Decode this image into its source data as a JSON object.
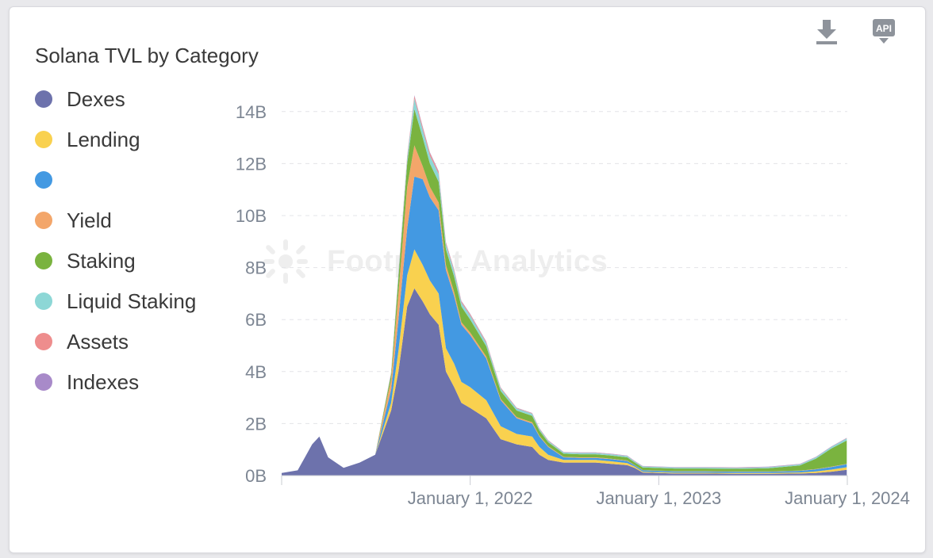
{
  "title": "Solana TVL by Category",
  "watermark": "Footprint Analytics",
  "legend": [
    {
      "label": "Dexes",
      "color": "#6d72ac"
    },
    {
      "label": "Lending",
      "color": "#f9d14f"
    },
    {
      "label": "",
      "color": "#4399e2"
    },
    {
      "label": "Yield",
      "color": "#f3a66a"
    },
    {
      "label": "Staking",
      "color": "#7ab33f"
    },
    {
      "label": "Liquid Staking",
      "color": "#8dd7d6"
    },
    {
      "label": "Assets",
      "color": "#ee8d8d"
    },
    {
      "label": "Indexes",
      "color": "#a88ac9"
    }
  ],
  "toolbar": {
    "download_icon": "download-icon",
    "api_label": "API"
  },
  "chart_data": {
    "type": "area",
    "stacked": true,
    "title": "Solana TVL by Category",
    "xlabel": "",
    "ylabel": "",
    "ylim": [
      0,
      15000000000
    ],
    "yticks": [
      "0B",
      "2B",
      "4B",
      "6B",
      "8B",
      "10B",
      "12B",
      "14B"
    ],
    "ytick_values": [
      0,
      2,
      4,
      6,
      8,
      10,
      12,
      14
    ],
    "xticks": [
      "January 1, 2022",
      "January 1, 2023",
      "January 1, 2024"
    ],
    "xtick_positions": [
      "2022-01-01",
      "2023-01-01",
      "2024-01-01"
    ],
    "x_range": [
      "2021-01-01",
      "2024-01-01"
    ],
    "x": [
      "2021-01-01",
      "2021-02-01",
      "2021-03-01",
      "2021-03-15",
      "2021-04-01",
      "2021-05-01",
      "2021-06-01",
      "2021-07-01",
      "2021-08-01",
      "2021-08-15",
      "2021-09-01",
      "2021-09-15",
      "2021-10-01",
      "2021-10-15",
      "2021-11-01",
      "2021-11-15",
      "2021-12-01",
      "2021-12-15",
      "2022-01-01",
      "2022-02-01",
      "2022-03-01",
      "2022-04-01",
      "2022-05-01",
      "2022-05-15",
      "2022-06-01",
      "2022-07-01",
      "2022-08-01",
      "2022-09-01",
      "2022-10-01",
      "2022-11-01",
      "2022-11-15",
      "2022-12-01",
      "2023-02-01",
      "2023-04-01",
      "2023-06-01",
      "2023-08-01",
      "2023-10-01",
      "2023-11-01",
      "2023-12-01",
      "2023-12-31"
    ],
    "series": [
      {
        "name": "Dexes",
        "values": [
          0.1,
          0.2,
          1.2,
          1.5,
          0.7,
          0.3,
          0.5,
          0.8,
          2.5,
          4.0,
          6.5,
          7.2,
          6.7,
          6.2,
          5.8,
          4.0,
          3.4,
          2.8,
          2.6,
          2.2,
          1.4,
          1.2,
          1.1,
          0.8,
          0.6,
          0.5,
          0.5,
          0.5,
          0.45,
          0.4,
          0.3,
          0.12,
          0.08,
          0.08,
          0.07,
          0.07,
          0.08,
          0.1,
          0.15,
          0.22
        ]
      },
      {
        "name": "Lending",
        "values": [
          0.0,
          0.0,
          0.0,
          0.0,
          0.0,
          0.0,
          0.0,
          0.0,
          0.3,
          0.8,
          1.2,
          1.5,
          1.4,
          1.3,
          1.2,
          0.9,
          0.9,
          0.8,
          0.8,
          0.7,
          0.5,
          0.4,
          0.4,
          0.3,
          0.2,
          0.1,
          0.1,
          0.1,
          0.1,
          0.08,
          0.05,
          0.03,
          0.03,
          0.03,
          0.03,
          0.03,
          0.04,
          0.06,
          0.08,
          0.1
        ]
      },
      {
        "name": "",
        "values": [
          0.0,
          0.0,
          0.0,
          0.0,
          0.0,
          0.0,
          0.0,
          0.0,
          0.5,
          1.2,
          1.8,
          2.8,
          3.3,
          3.2,
          3.2,
          3.0,
          2.6,
          2.2,
          2.0,
          1.6,
          1.0,
          0.6,
          0.5,
          0.4,
          0.3,
          0.1,
          0.08,
          0.08,
          0.08,
          0.08,
          0.05,
          0.05,
          0.05,
          0.05,
          0.05,
          0.05,
          0.06,
          0.08,
          0.1,
          0.12
        ]
      },
      {
        "name": "Yield",
        "values": [
          0.0,
          0.0,
          0.0,
          0.0,
          0.0,
          0.0,
          0.0,
          0.0,
          0.4,
          1.0,
          1.6,
          1.2,
          0.5,
          0.4,
          0.3,
          0.2,
          0.15,
          0.1,
          0.1,
          0.08,
          0.05,
          0.05,
          0.05,
          0.03,
          0.03,
          0.02,
          0.02,
          0.02,
          0.02,
          0.02,
          0.01,
          0.01,
          0.01,
          0.01,
          0.01,
          0.01,
          0.01,
          0.01,
          0.01,
          0.01
        ]
      },
      {
        "name": "Staking",
        "values": [
          0.0,
          0.0,
          0.0,
          0.0,
          0.0,
          0.0,
          0.0,
          0.0,
          0.2,
          0.6,
          0.9,
          1.4,
          1.1,
          0.9,
          0.8,
          0.6,
          0.6,
          0.6,
          0.5,
          0.4,
          0.3,
          0.25,
          0.25,
          0.2,
          0.15,
          0.12,
          0.12,
          0.12,
          0.12,
          0.12,
          0.1,
          0.1,
          0.1,
          0.1,
          0.1,
          0.12,
          0.2,
          0.4,
          0.7,
          0.9
        ]
      },
      {
        "name": "Liquid Staking",
        "values": [
          0.0,
          0.0,
          0.0,
          0.0,
          0.0,
          0.0,
          0.0,
          0.0,
          0.05,
          0.15,
          0.2,
          0.4,
          0.3,
          0.3,
          0.3,
          0.2,
          0.2,
          0.15,
          0.15,
          0.12,
          0.1,
          0.08,
          0.08,
          0.06,
          0.05,
          0.05,
          0.05,
          0.05,
          0.05,
          0.05,
          0.04,
          0.04,
          0.04,
          0.04,
          0.04,
          0.04,
          0.04,
          0.05,
          0.06,
          0.08
        ]
      },
      {
        "name": "Assets",
        "values": [
          0.0,
          0.0,
          0.0,
          0.0,
          0.0,
          0.0,
          0.0,
          0.0,
          0.03,
          0.05,
          0.08,
          0.1,
          0.1,
          0.1,
          0.08,
          0.06,
          0.06,
          0.05,
          0.05,
          0.04,
          0.03,
          0.02,
          0.02,
          0.02,
          0.02,
          0.01,
          0.01,
          0.01,
          0.01,
          0.01,
          0.01,
          0.01,
          0.01,
          0.01,
          0.01,
          0.01,
          0.01,
          0.01,
          0.01,
          0.01
        ]
      },
      {
        "name": "Indexes",
        "values": [
          0.0,
          0.0,
          0.0,
          0.0,
          0.0,
          0.0,
          0.0,
          0.0,
          0.01,
          0.02,
          0.02,
          0.03,
          0.03,
          0.03,
          0.03,
          0.02,
          0.02,
          0.02,
          0.02,
          0.02,
          0.01,
          0.01,
          0.01,
          0.01,
          0.01,
          0.01,
          0.01,
          0.01,
          0.01,
          0.01,
          0.01,
          0.01,
          0.01,
          0.01,
          0.01,
          0.01,
          0.01,
          0.01,
          0.01,
          0.01
        ]
      }
    ],
    "value_unit": "B (billions USD)",
    "grid": true,
    "legend_position": "left"
  }
}
